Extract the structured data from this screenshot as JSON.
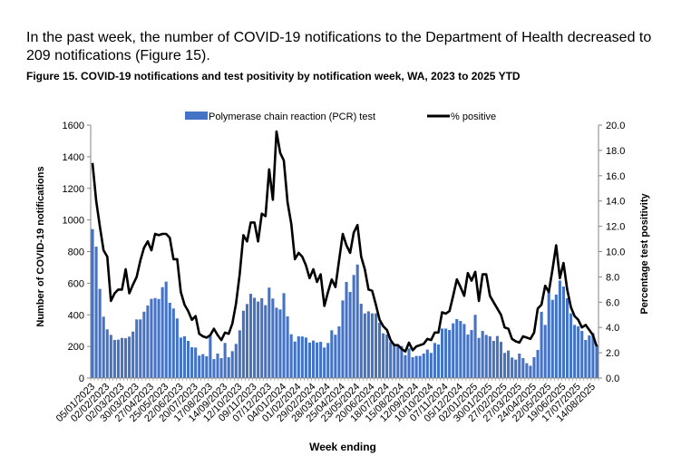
{
  "document": {
    "intro_text": "In the past week, the number of COVID-19 notifications to the Department of Health decreased to 209 notifications (Figure 15).",
    "figure_title": "Figure 15. COVID-19 notifications and test positivity by notification week, WA, 2023 to 2025 YTD"
  },
  "chart_data": {
    "type": "bar+line",
    "title": "Figure 15. COVID-19 notifications and test positivity by notification week, WA, 2023 to 2025 YTD",
    "xlabel": "Week ending",
    "ylabel": "Number of COVID-19 notifications",
    "y2label": "Percentage test positivity",
    "ylim": [
      0,
      1600
    ],
    "y2lim": [
      0,
      20
    ],
    "y_ticks": [
      "0",
      "200",
      "400",
      "600",
      "800",
      "1000",
      "1200",
      "1400",
      "1600"
    ],
    "y2_ticks": [
      "0.0",
      "2.0",
      "4.0",
      "6.0",
      "8.0",
      "10.0",
      "12.0",
      "14.0",
      "16.0",
      "18.0",
      "20.0"
    ],
    "x_tick_labels": [
      "05/01/2023",
      "02/02/2023",
      "02/03/2023",
      "30/03/2023",
      "27/04/2023",
      "25/05/2023",
      "22/06/2023",
      "20/07/2023",
      "17/08/2023",
      "14/09/2023",
      "12/10/2023",
      "09/11/2023",
      "07/12/2023",
      "04/01/2024",
      "01/02/2024",
      "29/02/2024",
      "28/03/2024",
      "25/04/2024",
      "23/05/2024",
      "20/06/2024",
      "18/07/2024",
      "15/08/2024",
      "12/09/2024",
      "10/10/2024",
      "07/11/2024",
      "05/12/2024",
      "02/01/2025",
      "30/01/2025",
      "27/02/2025",
      "27/03/2025",
      "24/04/2025",
      "22/05/2025",
      "19/06/2025",
      "17/07/2025",
      "14/08/2025"
    ],
    "x_tick_every_weeks": 4,
    "legend_position": "top-center",
    "grid": false,
    "series": [
      {
        "name": "Polymerase chain reaction (PCR) test",
        "type": "bar",
        "axis": "left",
        "color": "#4472C4",
        "values": [
          942,
          831,
          564,
          388,
          308,
          273,
          241,
          243,
          254,
          252,
          262,
          294,
          371,
          371,
          420,
          459,
          501,
          506,
          500,
          575,
          610,
          476,
          440,
          377,
          256,
          264,
          235,
          195,
          193,
          142,
          151,
          138,
          273,
          120,
          155,
          126,
          222,
          132,
          170,
          216,
          302,
          426,
          468,
          533,
          508,
          484,
          505,
          461,
          572,
          503,
          445,
          434,
          537,
          390,
          277,
          231,
          264,
          263,
          256,
          224,
          237,
          225,
          229,
          193,
          222,
          302,
          274,
          327,
          491,
          608,
          545,
          652,
          718,
          470,
          409,
          422,
          409,
          409,
          350,
          283,
          275,
          228,
          212,
          212,
          203,
          145,
          187,
          132,
          140,
          140,
          155,
          180,
          159,
          222,
          212,
          313,
          313,
          304,
          346,
          373,
          361,
          342,
          275,
          304,
          400,
          254,
          298,
          273,
          264,
          235,
          266,
          229,
          159,
          174,
          130,
          117,
          155,
          126,
          94,
          78,
          132,
          178,
          419,
          336,
          547,
          495,
          528,
          617,
          579,
          505,
          409,
          336,
          327,
          298,
          241,
          270,
          285,
          209
        ]
      },
      {
        "name": "% positive",
        "type": "line",
        "axis": "right",
        "color": "#000000",
        "values": [
          17.0,
          14.0,
          12.0,
          10.1,
          9.6,
          6.1,
          6.7,
          7.0,
          7.0,
          8.6,
          6.7,
          7.4,
          8.0,
          9.3,
          10.3,
          10.8,
          10.1,
          11.4,
          11.3,
          11.4,
          11.4,
          11.1,
          9.4,
          9.4,
          6.8,
          5.8,
          5.3,
          4.6,
          4.9,
          3.5,
          3.3,
          3.2,
          3.4,
          3.9,
          3.4,
          3.0,
          3.6,
          3.5,
          4.3,
          5.9,
          8.2,
          11.3,
          10.8,
          12.3,
          12.3,
          10.8,
          13.0,
          12.8,
          16.5,
          14.1,
          19.5,
          17.8,
          17.2,
          13.9,
          12.2,
          9.4,
          9.9,
          9.6,
          8.9,
          7.9,
          8.6,
          7.6,
          8.2,
          5.7,
          6.8,
          7.8,
          7.2,
          9.3,
          11.4,
          10.5,
          9.9,
          11.5,
          12.1,
          9.6,
          8.6,
          7.0,
          6.9,
          5.8,
          4.6,
          4.1,
          3.8,
          3.0,
          2.6,
          2.6,
          2.3,
          2.1,
          2.8,
          2.2,
          2.5,
          2.6,
          2.7,
          3.1,
          3.0,
          3.6,
          3.6,
          5.2,
          5.1,
          5.3,
          6.5,
          7.8,
          7.2,
          6.5,
          8.3,
          7.7,
          8.4,
          6.1,
          8.2,
          8.2,
          6.5,
          6.0,
          5.5,
          5.0,
          4.0,
          3.9,
          3.1,
          2.9,
          2.8,
          3.3,
          3.2,
          3.1,
          3.6,
          5.5,
          5.8,
          7.3,
          6.8,
          8.6,
          10.5,
          7.9,
          9.1,
          7.0,
          5.6,
          4.9,
          4.6,
          4.0,
          4.2,
          3.8,
          3.4,
          2.5
        ]
      }
    ]
  }
}
